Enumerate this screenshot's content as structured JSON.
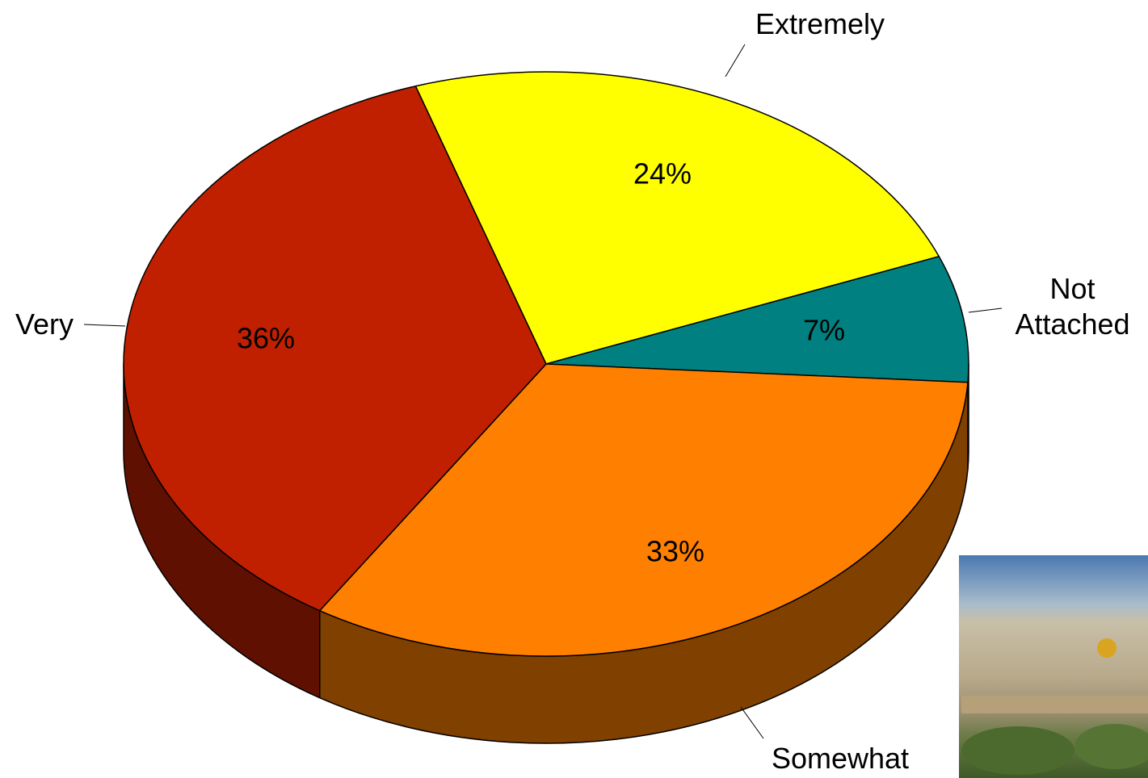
{
  "chart_data": {
    "type": "pie",
    "categories": [
      "Extremely",
      "Not Attached",
      "Somewhat",
      "Very"
    ],
    "values": [
      24,
      7,
      33,
      36
    ],
    "value_labels": [
      "24%",
      "7%",
      "33%",
      "36%"
    ],
    "colors": [
      "#ffff00",
      "#008080",
      "#ff8000",
      "#c02000"
    ]
  }
}
